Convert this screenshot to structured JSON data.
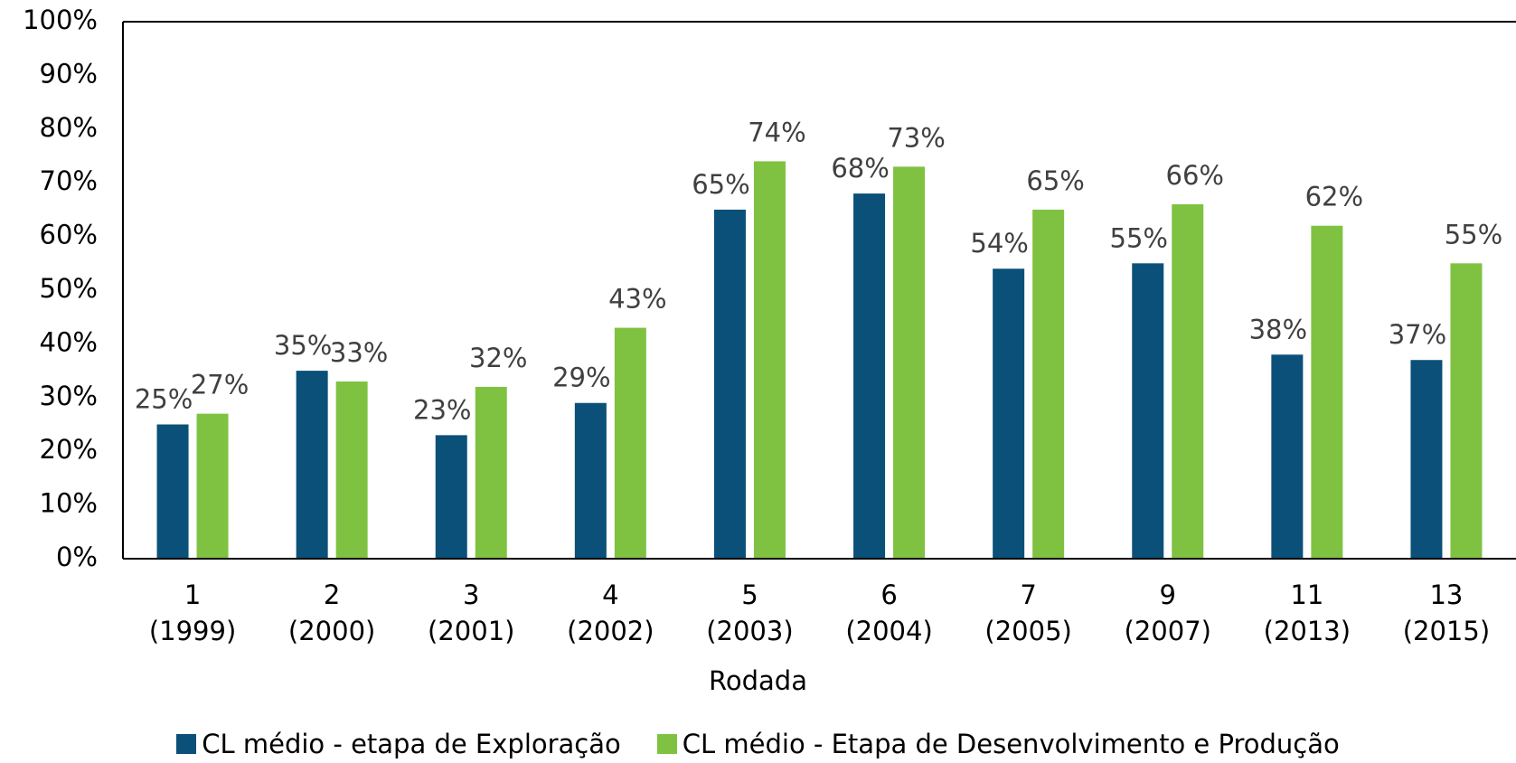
{
  "chart_data": {
    "type": "bar",
    "x_label": "Rodada",
    "categories": [
      "1 (1999)",
      "2 (2000)",
      "3 (2001)",
      "4 (2002)",
      "5 (2003)",
      "6 (2004)",
      "7 (2005)",
      "9 (2007)",
      "11 (2013)",
      "13 (2015)"
    ],
    "series": [
      {
        "name": "CL médio - etapa de Exploração",
        "color": "#0b5078",
        "values": [
          25,
          35,
          23,
          29,
          65,
          68,
          54,
          55,
          38,
          37
        ],
        "value_labels": [
          "25%",
          "35%",
          "23%",
          "29%",
          "65%",
          "68%",
          "54%",
          "55%",
          "38%",
          "37%"
        ]
      },
      {
        "name": "CL médio - Etapa de Desenvolvimento e Produção",
        "color": "#7fc241",
        "values": [
          27,
          33,
          32,
          43,
          74,
          73,
          65,
          66,
          62,
          55
        ],
        "value_labels": [
          "27%",
          "33%",
          "32%",
          "43%",
          "74%",
          "73%",
          "65%",
          "66%",
          "62%",
          "55%"
        ]
      }
    ],
    "ylim": [
      0,
      100
    ],
    "yticks": [
      {
        "value": 0,
        "label": "0%"
      },
      {
        "value": 10,
        "label": "10%"
      },
      {
        "value": 20,
        "label": "20%"
      },
      {
        "value": 30,
        "label": "30%"
      },
      {
        "value": 40,
        "label": "40%"
      },
      {
        "value": 50,
        "label": "50%"
      },
      {
        "value": 60,
        "label": "60%"
      },
      {
        "value": 70,
        "label": "70%"
      },
      {
        "value": 80,
        "label": "80%"
      },
      {
        "value": 90,
        "label": "90%"
      },
      {
        "value": 100,
        "label": "100%"
      }
    ],
    "grid": false,
    "legend": "bottom"
  }
}
